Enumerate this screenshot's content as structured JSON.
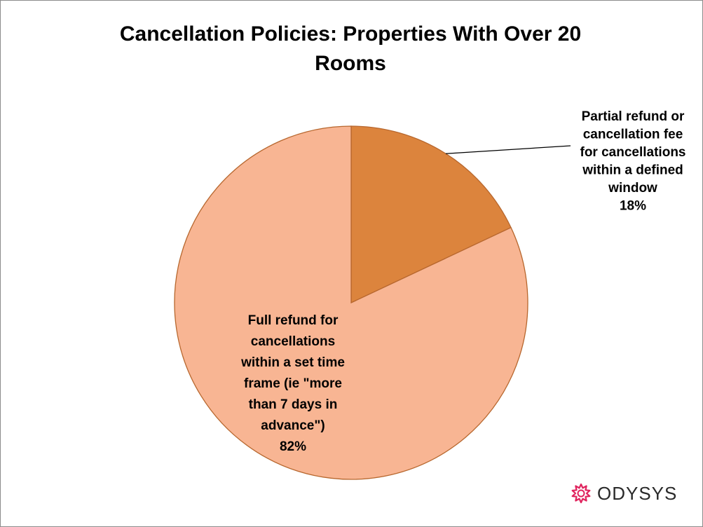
{
  "chart_data": {
    "type": "pie",
    "title_lines": [
      "Cancellation Policies: Properties With Over 20",
      "Rooms"
    ],
    "slices": [
      {
        "label_lines": [
          "Partial refund or",
          "cancellation fee",
          "for cancellations",
          "within a defined",
          "window"
        ],
        "value": 18,
        "value_label": "18%",
        "color": "#dc843d"
      },
      {
        "label_lines": [
          "Full refund for",
          "cancellations",
          "within a set time",
          "frame (ie \"more",
          "than 7 days in",
          "advance\")"
        ],
        "value": 82,
        "value_label": "82%",
        "color": "#f8b593"
      }
    ],
    "edge_color": "#b7672e",
    "legend": "none"
  },
  "brand": {
    "name": "ODYSYS",
    "icon": "starburst-icon",
    "color": "#e0245e"
  }
}
